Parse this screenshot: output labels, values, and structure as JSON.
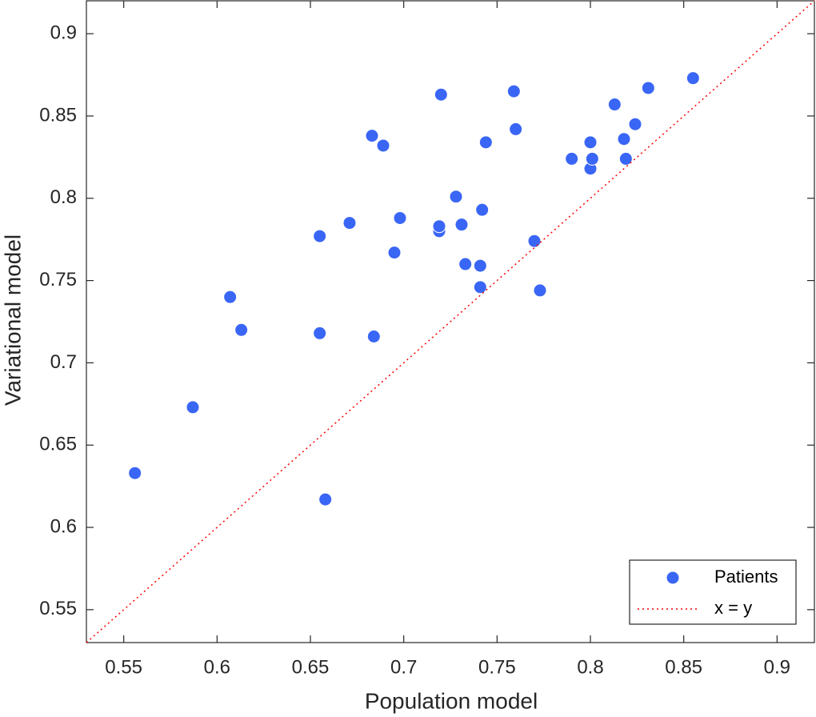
{
  "chart_data": {
    "type": "scatter",
    "x_label": "Population model",
    "y_label": "Variational model",
    "xlim": [
      0.53,
      0.92
    ],
    "ylim": [
      0.53,
      0.92
    ],
    "xticks": [
      0.55,
      0.6,
      0.65,
      0.7,
      0.75,
      0.8,
      0.85,
      0.9
    ],
    "yticks": [
      0.55,
      0.6,
      0.65,
      0.7,
      0.75,
      0.8,
      0.85,
      0.9
    ],
    "legend": "southeast",
    "series": [
      {
        "name": "Patients",
        "type": "scatter",
        "color": "#3a66f5",
        "x": [
          0.556,
          0.587,
          0.607,
          0.613,
          0.655,
          0.655,
          0.658,
          0.671,
          0.683,
          0.684,
          0.689,
          0.695,
          0.698,
          0.719,
          0.719,
          0.72,
          0.728,
          0.731,
          0.733,
          0.741,
          0.741,
          0.742,
          0.744,
          0.759,
          0.76,
          0.77,
          0.773,
          0.79,
          0.8,
          0.8,
          0.801,
          0.813,
          0.818,
          0.819,
          0.824,
          0.831,
          0.855
        ],
        "values": [
          0.633,
          0.673,
          0.74,
          0.72,
          0.777,
          0.718,
          0.617,
          0.785,
          0.838,
          0.716,
          0.832,
          0.767,
          0.788,
          0.78,
          0.783,
          0.863,
          0.801,
          0.784,
          0.76,
          0.759,
          0.746,
          0.793,
          0.834,
          0.865,
          0.842,
          0.774,
          0.744,
          0.824,
          0.834,
          0.818,
          0.824,
          0.857,
          0.836,
          0.824,
          0.845,
          0.867,
          0.873
        ]
      },
      {
        "name": "x = y",
        "type": "line",
        "color": "#ff0000",
        "x": [
          0.53,
          0.92
        ],
        "values": [
          0.53,
          0.92
        ]
      }
    ]
  }
}
